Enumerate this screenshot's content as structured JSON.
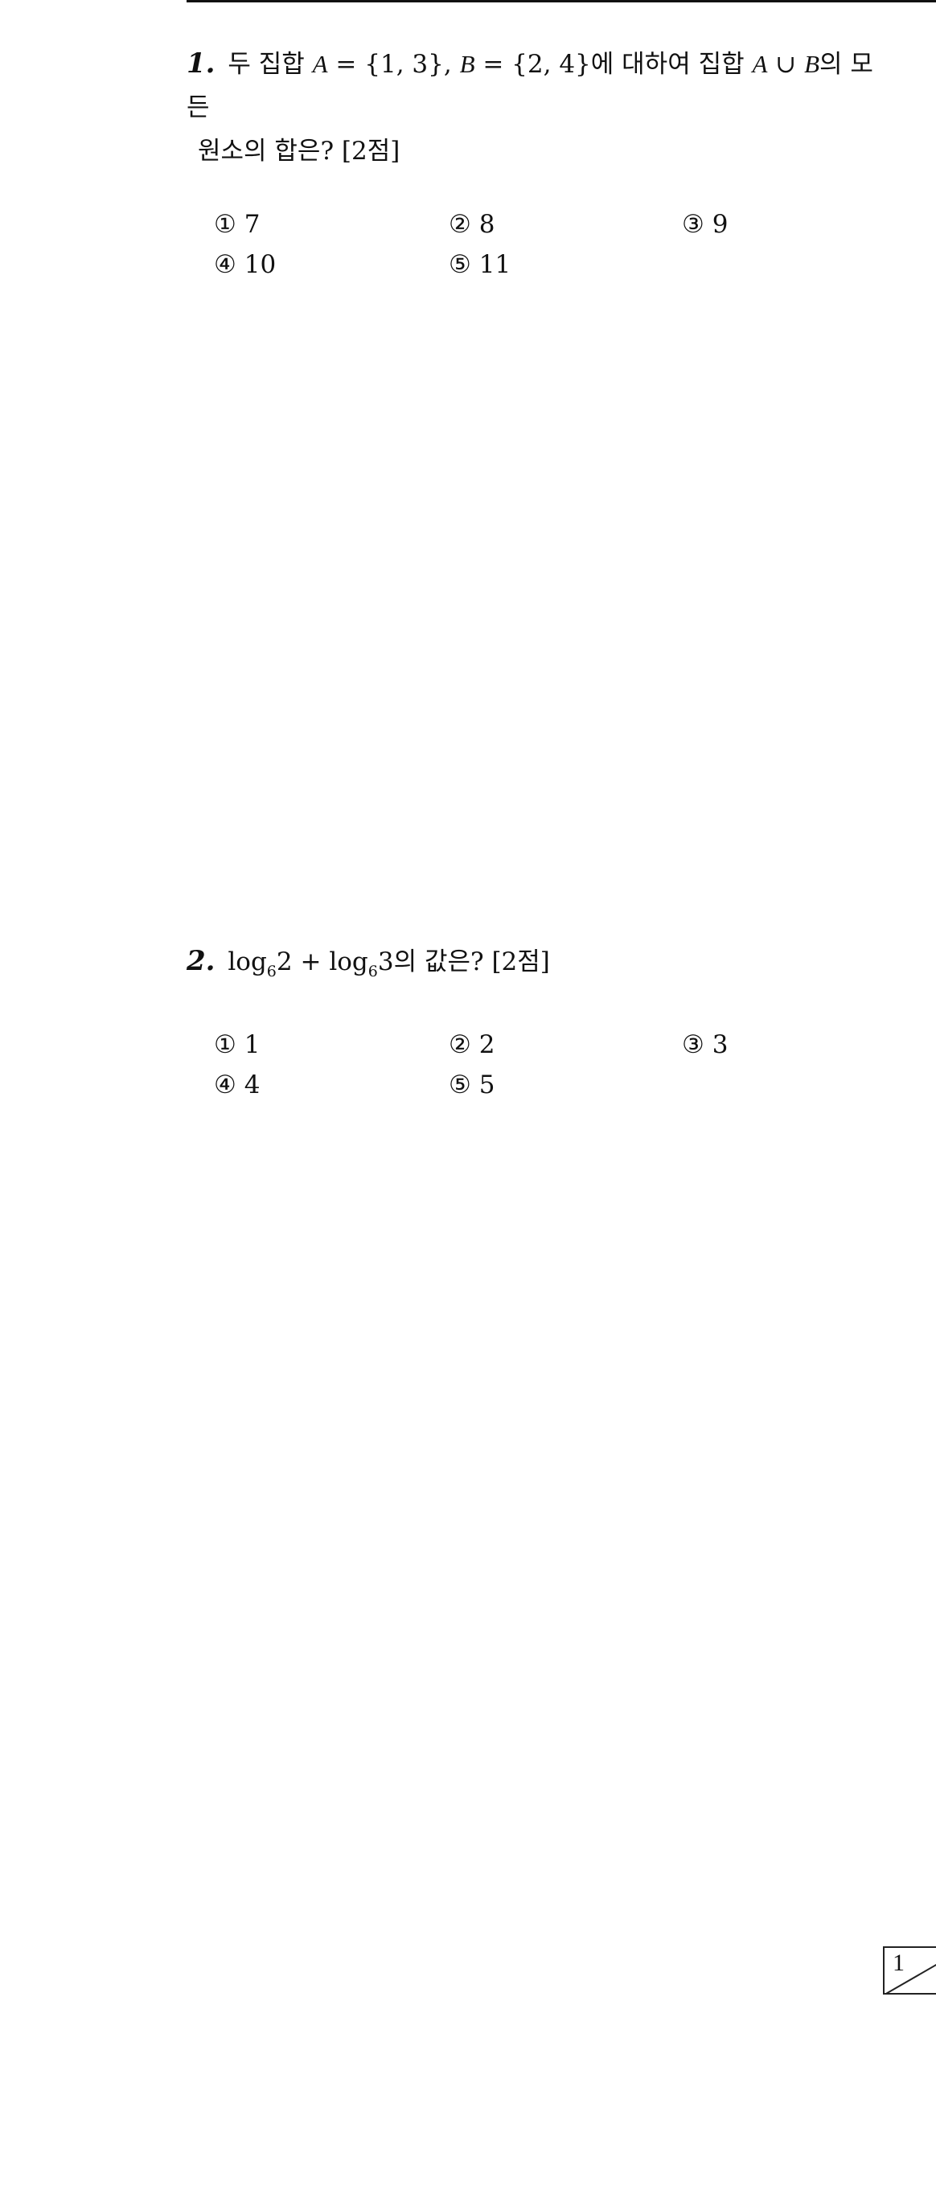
{
  "questions": [
    {
      "number": "1.",
      "text_part1": " 두 집합 ",
      "var_a": "A",
      "set_a": " = {1, 3}, ",
      "var_b": "B",
      "set_b": " = {2, 4}에 대하여 집합 ",
      "var_a2": "A",
      "union": " ∪ ",
      "var_b2": "B",
      "text_part2": "의 모든",
      "line2": "원소의 합은? [2점]",
      "choices": [
        {
          "mark": "①",
          "value": "7"
        },
        {
          "mark": "②",
          "value": "8"
        },
        {
          "mark": "③",
          "value": "9"
        },
        {
          "mark": "④",
          "value": "10"
        },
        {
          "mark": "⑤",
          "value": "11"
        }
      ]
    },
    {
      "number": "2.",
      "log1": "log",
      "base1": "6",
      "arg1": "2",
      "plus": " + ",
      "log2": "log",
      "base2": "6",
      "arg2": "3",
      "tail": "의 값은? [2점]",
      "choices": [
        {
          "mark": "①",
          "value": "1"
        },
        {
          "mark": "②",
          "value": "2"
        },
        {
          "mark": "③",
          "value": "3"
        },
        {
          "mark": "④",
          "value": "4"
        },
        {
          "mark": "⑤",
          "value": "5"
        }
      ]
    }
  ],
  "page": {
    "number": "1"
  }
}
